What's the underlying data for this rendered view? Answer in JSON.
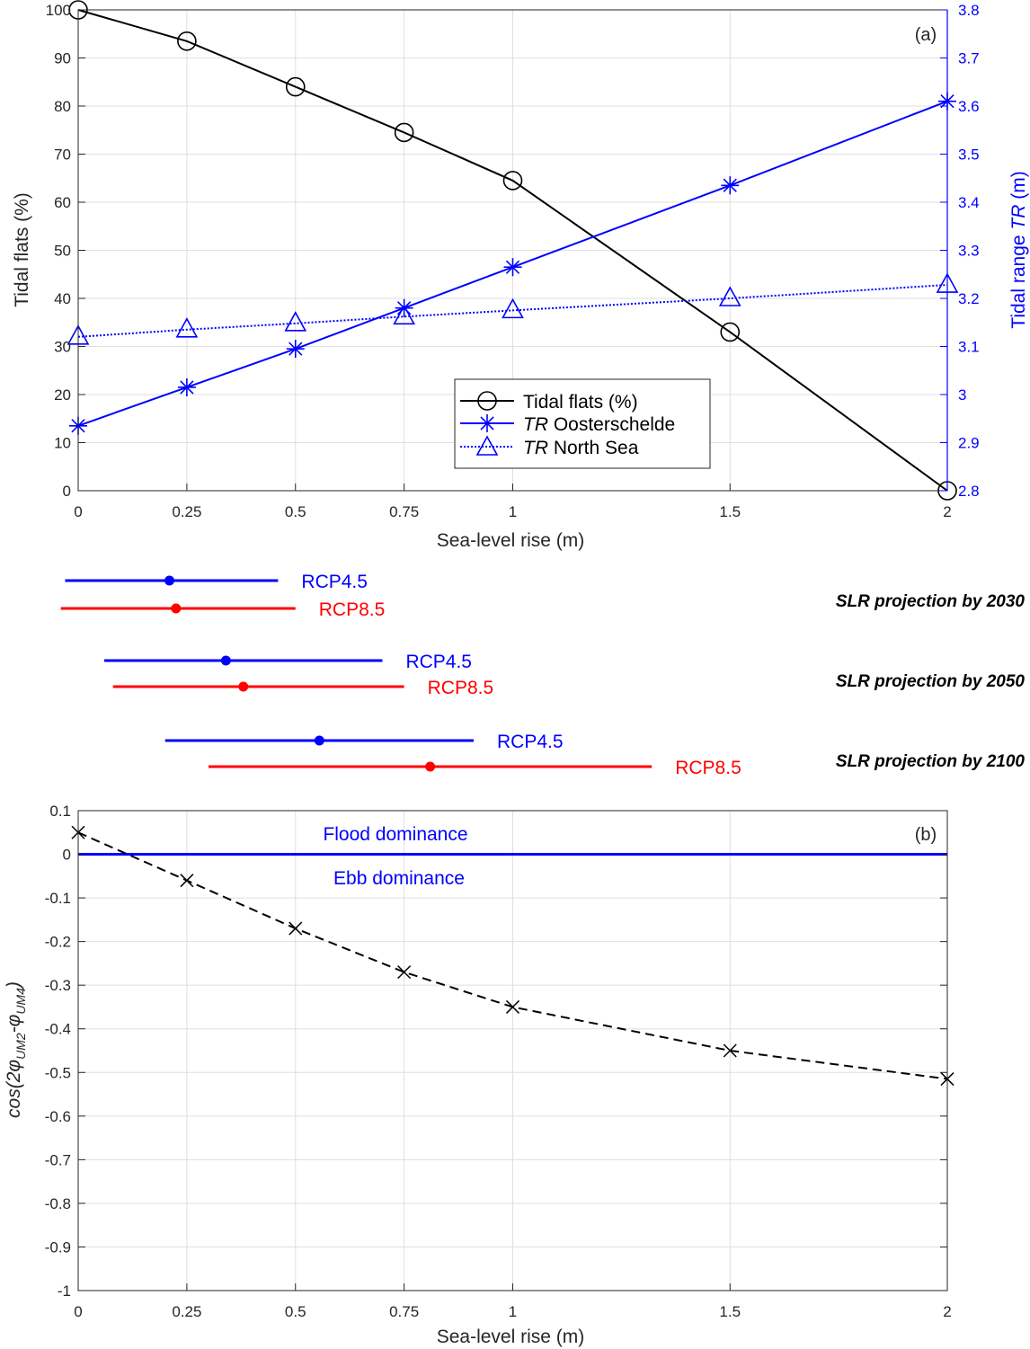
{
  "chart_data": [
    {
      "panel": "(a)",
      "type": "line",
      "xlabel": "Sea-level rise (m)",
      "ylabel": "Tidal flats (%)",
      "ylabel_right_prefix": "Tidal range ",
      "ylabel_right_italic": "TR",
      "ylabel_right_suffix": " (m)",
      "xlim": [
        0,
        2
      ],
      "ylim": [
        0,
        100
      ],
      "ylim_right": [
        2.8,
        3.8
      ],
      "x": [
        0,
        0.25,
        0.5,
        0.75,
        1,
        1.5,
        2
      ],
      "x_tick_labels": [
        "0",
        "0.25",
        "0.5",
        "0.75",
        "1",
        "1.5",
        "2"
      ],
      "y_tick_labels": [
        "0",
        "10",
        "20",
        "30",
        "40",
        "50",
        "60",
        "70",
        "80",
        "90",
        "100"
      ],
      "y_right_tick_labels": [
        "2.8",
        "2.9",
        "3",
        "3.1",
        "3.2",
        "3.3",
        "3.4",
        "3.5",
        "3.6",
        "3.7",
        "3.8"
      ],
      "grid": true,
      "legend_position": "center-right",
      "series": [
        {
          "name": "Tidal flats (%)",
          "axis": "left",
          "color": "#000000",
          "marker": "circle",
          "line": "solid",
          "legend_italic": "",
          "legend_text": "Tidal flats (%)",
          "values": [
            100,
            93.5,
            84,
            74.5,
            64.5,
            33,
            0
          ]
        },
        {
          "name": "TR Oosterschelde",
          "axis": "right",
          "color": "#0000ff",
          "marker": "star",
          "line": "solid",
          "legend_italic": "TR",
          "legend_text": " Oosterschelde",
          "values": [
            2.935,
            3.015,
            3.095,
            3.18,
            3.265,
            3.435,
            3.61
          ]
        },
        {
          "name": "TR North Sea",
          "axis": "right",
          "color": "#0000ff",
          "marker": "triangle",
          "line": "dotted",
          "legend_italic": "TR",
          "legend_text": " North Sea",
          "values": [
            3.12,
            3.135,
            3.148,
            3.162,
            3.175,
            3.2,
            3.228
          ]
        }
      ]
    },
    {
      "panel": "projections",
      "type": "interval",
      "rows": [
        {
          "year_label": "SLR projection by 2030",
          "bars": [
            {
              "label": "RCP4.5",
              "color": "#0000ff",
              "low": -0.03,
              "mid": 0.21,
              "high": 0.46
            },
            {
              "label": "RCP8.5",
              "color": "#ff0000",
              "low": -0.04,
              "mid": 0.225,
              "high": 0.5
            }
          ]
        },
        {
          "year_label": "SLR projection by 2050",
          "bars": [
            {
              "label": "RCP4.5",
              "color": "#0000ff",
              "low": 0.06,
              "mid": 0.34,
              "high": 0.7
            },
            {
              "label": "RCP8.5",
              "color": "#ff0000",
              "low": 0.08,
              "mid": 0.38,
              "high": 0.75
            }
          ]
        },
        {
          "year_label": "SLR projection by 2100",
          "bars": [
            {
              "label": "RCP4.5",
              "color": "#0000ff",
              "low": 0.2,
              "mid": 0.555,
              "high": 0.91
            },
            {
              "label": "RCP8.5",
              "color": "#ff0000",
              "low": 0.3,
              "mid": 0.81,
              "high": 1.32
            }
          ]
        }
      ]
    },
    {
      "panel": "(b)",
      "type": "line",
      "xlabel": "Sea-level rise (m)",
      "ylabel": "cos(2φUM2-φUM4)",
      "ylim": [
        -1,
        0.1
      ],
      "xlim": [
        0,
        2
      ],
      "x": [
        0,
        0.25,
        0.5,
        0.75,
        1,
        1.5,
        2
      ],
      "x_tick_labels": [
        "0",
        "0.25",
        "0.5",
        "0.75",
        "1",
        "1.5",
        "2"
      ],
      "y_tick_labels": [
        "-1",
        "-0.9",
        "-0.8",
        "-0.7",
        "-0.6",
        "-0.5",
        "-0.4",
        "-0.3",
        "-0.2",
        "-0.1",
        "0",
        "0.1"
      ],
      "y_tick_values": [
        -1,
        -0.9,
        -0.8,
        -0.7,
        -0.6,
        -0.5,
        -0.4,
        -0.3,
        -0.2,
        -0.1,
        0,
        0.1
      ],
      "grid": true,
      "series": [
        {
          "name": "cos(2φUM2-φUM4)",
          "color": "#000000",
          "marker": "x",
          "line": "dashed",
          "values": [
            0.05,
            -0.06,
            -0.17,
            -0.27,
            -0.35,
            -0.45,
            -0.515
          ]
        }
      ],
      "reference_line": {
        "y": 0,
        "color": "#0000ff"
      },
      "annotations": [
        {
          "text": "Flood dominance",
          "color": "#0000ff"
        },
        {
          "text": "Ebb dominance",
          "color": "#0000ff"
        }
      ]
    }
  ]
}
